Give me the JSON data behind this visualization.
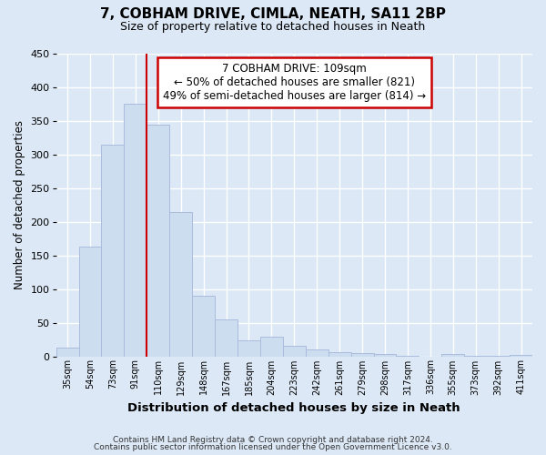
{
  "title1": "7, COBHAM DRIVE, CIMLA, NEATH, SA11 2BP",
  "title2": "Size of property relative to detached houses in Neath",
  "xlabel": "Distribution of detached houses by size in Neath",
  "ylabel": "Number of detached properties",
  "categories": [
    "35sqm",
    "54sqm",
    "73sqm",
    "91sqm",
    "110sqm",
    "129sqm",
    "148sqm",
    "167sqm",
    "185sqm",
    "204sqm",
    "223sqm",
    "242sqm",
    "261sqm",
    "279sqm",
    "298sqm",
    "317sqm",
    "336sqm",
    "355sqm",
    "373sqm",
    "392sqm",
    "411sqm"
  ],
  "values": [
    13,
    163,
    315,
    375,
    345,
    215,
    90,
    55,
    24,
    29,
    15,
    10,
    6,
    5,
    4,
    1,
    0,
    3,
    1,
    1,
    2
  ],
  "bar_color": "#ccddef",
  "bar_edge_color": "#aabbdd",
  "vline_x_index": 4,
  "vline_color": "#cc0000",
  "annotation_text": "7 COBHAM DRIVE: 109sqm\n← 50% of detached houses are smaller (821)\n49% of semi-detached houses are larger (814) →",
  "annotation_box_color": "#ffffff",
  "annotation_box_edge": "#cc0000",
  "footer1": "Contains HM Land Registry data © Crown copyright and database right 2024.",
  "footer2": "Contains public sector information licensed under the Open Government Licence v3.0.",
  "bg_color": "#dce8f5",
  "plot_bg_color": "#dce8f5",
  "ylim": [
    0,
    450
  ],
  "grid_color": "#ffffff"
}
